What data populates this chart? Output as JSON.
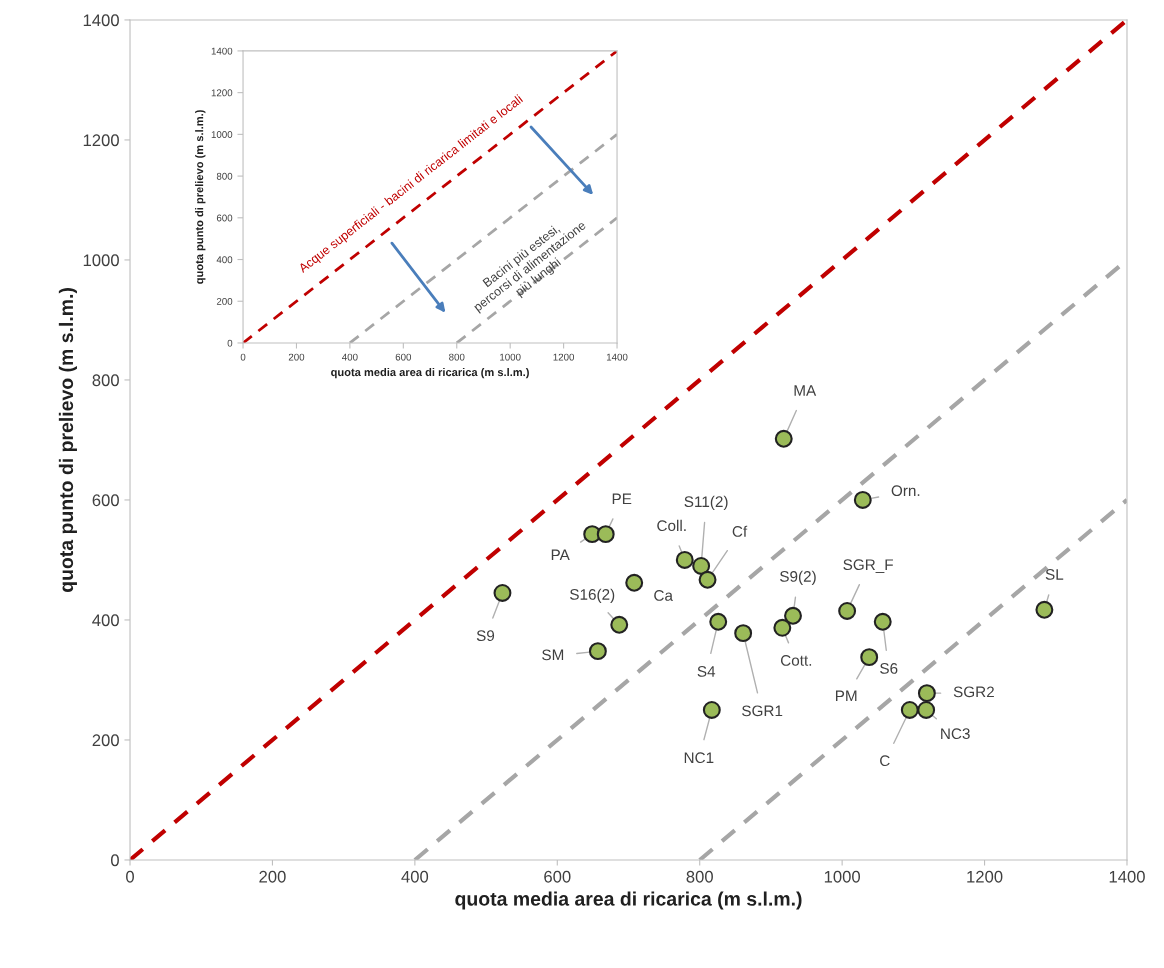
{
  "chart_data": [
    {
      "type": "scatter",
      "xlabel": "quota media area di ricarica (m s.l.m.)",
      "ylabel": "quota punto di prelievo (m s.l.m.)",
      "xlim": [
        0,
        1400
      ],
      "ylim": [
        0,
        1400
      ],
      "xticks": [
        0,
        200,
        400,
        600,
        800,
        1000,
        1200,
        1400
      ],
      "yticks": [
        0,
        200,
        400,
        600,
        800,
        1000,
        1200,
        1400
      ],
      "grid": false,
      "series": [
        {
          "type": "line",
          "color": "#c00000",
          "line_style": "dashed",
          "x": [
            0,
            1400
          ],
          "values": [
            0,
            1400
          ]
        },
        {
          "type": "line",
          "color": "#a6a6a6",
          "line_style": "dashed",
          "x": [
            400,
            1400
          ],
          "values": [
            0,
            1000
          ]
        },
        {
          "type": "line",
          "color": "#a6a6a6",
          "line_style": "dashed",
          "x": [
            800,
            1400
          ],
          "values": [
            0,
            600
          ]
        },
        {
          "marker": "circle",
          "color": "#9bbb59",
          "x": [
            918,
            1029,
            649,
            668,
            779,
            802,
            811,
            708,
            523,
            687,
            657,
            826,
            861,
            931,
            916,
            1007,
            1057,
            1038,
            817,
            1284,
            1119,
            1118,
            1095
          ],
          "values": [
            702,
            600,
            543,
            543,
            500,
            490,
            467,
            462,
            445,
            392,
            348,
            397,
            378,
            407,
            387,
            415,
            397,
            338,
            250,
            417,
            278,
            250,
            250
          ]
        }
      ],
      "annotations": [
        {
          "text": "MA",
          "x": 918,
          "y": 702
        },
        {
          "text": "Orn.",
          "x": 1029,
          "y": 600
        },
        {
          "text": "PA",
          "x": 649,
          "y": 543
        },
        {
          "text": "PE",
          "x": 668,
          "y": 543
        },
        {
          "text": "Coll.",
          "x": 779,
          "y": 500
        },
        {
          "text": "S11(2)",
          "x": 802,
          "y": 490
        },
        {
          "text": "Cf",
          "x": 811,
          "y": 467
        },
        {
          "text": "Ca",
          "x": 708,
          "y": 462
        },
        {
          "text": "S9",
          "x": 523,
          "y": 445
        },
        {
          "text": "S16(2)",
          "x": 687,
          "y": 392
        },
        {
          "text": "SM",
          "x": 657,
          "y": 348
        },
        {
          "text": "S4",
          "x": 826,
          "y": 397
        },
        {
          "text": "SGR1",
          "x": 861,
          "y": 378
        },
        {
          "text": "S9(2)",
          "x": 931,
          "y": 407
        },
        {
          "text": "Cott.",
          "x": 916,
          "y": 387
        },
        {
          "text": "SGR_F",
          "x": 1007,
          "y": 415
        },
        {
          "text": "S6",
          "x": 1057,
          "y": 397
        },
        {
          "text": "PM",
          "x": 1038,
          "y": 338
        },
        {
          "text": "NC1",
          "x": 817,
          "y": 250
        },
        {
          "text": "SL",
          "x": 1284,
          "y": 417
        },
        {
          "text": "SGR2",
          "x": 1119,
          "y": 278
        },
        {
          "text": "NC3",
          "x": 1118,
          "y": 250
        },
        {
          "text": "C",
          "x": 1095,
          "y": 250
        }
      ]
    },
    {
      "type": "line",
      "xlabel": "quota media area di ricarica (m s.l.m.)",
      "ylabel": "quota punto di prelievo (m s.l.m.)",
      "xlim": [
        0,
        1400
      ],
      "ylim": [
        0,
        1400
      ],
      "xticks": [
        0,
        200,
        400,
        600,
        800,
        1000,
        1200,
        1400
      ],
      "yticks": [
        0,
        200,
        400,
        600,
        800,
        1000,
        1200,
        1400
      ],
      "grid": false,
      "series": [
        {
          "color": "#c00000",
          "line_style": "dashed",
          "x": [
            0,
            1400
          ],
          "values": [
            0,
            1400
          ]
        },
        {
          "color": "#a6a6a6",
          "line_style": "dashed",
          "x": [
            400,
            1400
          ],
          "values": [
            0,
            1000
          ]
        },
        {
          "color": "#a6a6a6",
          "line_style": "dashed",
          "x": [
            800,
            1400
          ],
          "values": [
            0,
            600
          ]
        }
      ],
      "annotations": [
        "Acque superficiali - bacini di ricarica limitati e locali",
        "Bacini più estesi,\npercorsi di alimentazione\npiù lunghi"
      ]
    }
  ]
}
